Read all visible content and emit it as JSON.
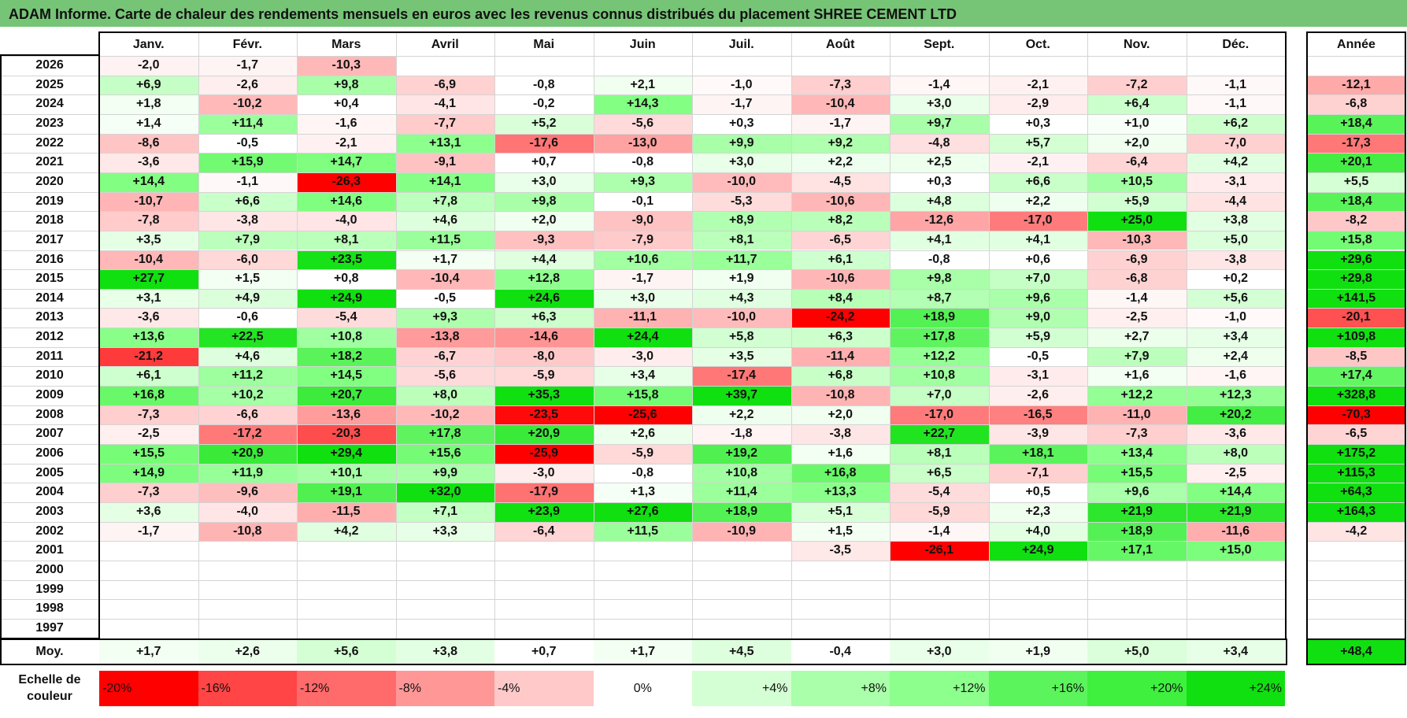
{
  "title": "ADAM Informe. Carte de chaleur des rendements mensuels en euros avec les revenus connus distribués du placement SHREE CEMENT LTD",
  "chart_data": {
    "type": "heatmap",
    "months": [
      "Janv.",
      "Févr.",
      "Mars",
      "Avril",
      "Mai",
      "Juin",
      "Juil.",
      "Août",
      "Sept.",
      "Oct.",
      "Nov.",
      "Déc."
    ],
    "year_header": "Année",
    "rows": [
      {
        "year": "2026",
        "months": [
          "-2,0",
          "-1,7",
          "-10,3",
          "",
          "",
          "",
          "",
          "",
          "",
          "",
          "",
          ""
        ],
        "annual": ""
      },
      {
        "year": "2025",
        "months": [
          "+6,9",
          "-2,6",
          "+9,8",
          "-6,9",
          "-0,8",
          "+2,1",
          "-1,0",
          "-7,3",
          "-1,4",
          "-2,1",
          "-7,2",
          "-1,1"
        ],
        "annual": "-12,1"
      },
      {
        "year": "2024",
        "months": [
          "+1,8",
          "-10,2",
          "+0,4",
          "-4,1",
          "-0,2",
          "+14,3",
          "-1,7",
          "-10,4",
          "+3,0",
          "-2,9",
          "+6,4",
          "-1,1"
        ],
        "annual": "-6,8"
      },
      {
        "year": "2023",
        "months": [
          "+1,4",
          "+11,4",
          "-1,6",
          "-7,7",
          "+5,2",
          "-5,6",
          "+0,3",
          "-1,7",
          "+9,7",
          "+0,3",
          "+1,0",
          "+6,2"
        ],
        "annual": "+18,4"
      },
      {
        "year": "2022",
        "months": [
          "-8,6",
          "-0,5",
          "-2,1",
          "+13,1",
          "-17,6",
          "-13,0",
          "+9,9",
          "+9,2",
          "-4,8",
          "+5,7",
          "+2,0",
          "-7,0"
        ],
        "annual": "-17,3"
      },
      {
        "year": "2021",
        "months": [
          "-3,6",
          "+15,9",
          "+14,7",
          "-9,1",
          "+0,7",
          "-0,8",
          "+3,0",
          "+2,2",
          "+2,5",
          "-2,1",
          "-6,4",
          "+4,2"
        ],
        "annual": "+20,1"
      },
      {
        "year": "2020",
        "months": [
          "+14,4",
          "-1,1",
          "-26,3",
          "+14,1",
          "+3,0",
          "+9,3",
          "-10,0",
          "-4,5",
          "+0,3",
          "+6,6",
          "+10,5",
          "-3,1"
        ],
        "annual": "+5,5"
      },
      {
        "year": "2019",
        "months": [
          "-10,7",
          "+6,6",
          "+14,6",
          "+7,8",
          "+9,8",
          "-0,1",
          "-5,3",
          "-10,6",
          "+4,8",
          "+2,2",
          "+5,9",
          "-4,4"
        ],
        "annual": "+18,4"
      },
      {
        "year": "2018",
        "months": [
          "-7,8",
          "-3,8",
          "-4,0",
          "+4,6",
          "+2,0",
          "-9,0",
          "+8,9",
          "+8,2",
          "-12,6",
          "-17,0",
          "+25,0",
          "+3,8"
        ],
        "annual": "-8,2"
      },
      {
        "year": "2017",
        "months": [
          "+3,5",
          "+7,9",
          "+8,1",
          "+11,5",
          "-9,3",
          "-7,9",
          "+8,1",
          "-6,5",
          "+4,1",
          "+4,1",
          "-10,3",
          "+5,0"
        ],
        "annual": "+15,8"
      },
      {
        "year": "2016",
        "months": [
          "-10,4",
          "-6,0",
          "+23,5",
          "+1,7",
          "+4,4",
          "+10,6",
          "+11,7",
          "+6,1",
          "-0,8",
          "+0,6",
          "-6,9",
          "-3,8"
        ],
        "annual": "+29,6"
      },
      {
        "year": "2015",
        "months": [
          "+27,7",
          "+1,5",
          "+0,8",
          "-10,4",
          "+12,8",
          "-1,7",
          "+1,9",
          "-10,6",
          "+9,8",
          "+7,0",
          "-6,8",
          "+0,2"
        ],
        "annual": "+29,8"
      },
      {
        "year": "2014",
        "months": [
          "+3,1",
          "+4,9",
          "+24,9",
          "-0,5",
          "+24,6",
          "+3,0",
          "+4,3",
          "+8,4",
          "+8,7",
          "+9,6",
          "-1,4",
          "+5,6"
        ],
        "annual": "+141,5"
      },
      {
        "year": "2013",
        "months": [
          "-3,6",
          "-0,6",
          "-5,4",
          "+9,3",
          "+6,3",
          "-11,1",
          "-10,0",
          "-24,2",
          "+18,9",
          "+9,0",
          "-2,5",
          "-1,0"
        ],
        "annual": "-20,1"
      },
      {
        "year": "2012",
        "months": [
          "+13,6",
          "+22,5",
          "+10,8",
          "-13,8",
          "-14,6",
          "+24,4",
          "+5,8",
          "+6,3",
          "+17,8",
          "+5,9",
          "+2,7",
          "+3,4"
        ],
        "annual": "+109,8"
      },
      {
        "year": "2011",
        "months": [
          "-21,2",
          "+4,6",
          "+18,2",
          "-6,7",
          "-8,0",
          "-3,0",
          "+3,5",
          "-11,4",
          "+12,2",
          "-0,5",
          "+7,9",
          "+2,4"
        ],
        "annual": "-8,5"
      },
      {
        "year": "2010",
        "months": [
          "+6,1",
          "+11,2",
          "+14,5",
          "-5,6",
          "-5,9",
          "+3,4",
          "-17,4",
          "+6,8",
          "+10,8",
          "-3,1",
          "+1,6",
          "-1,6"
        ],
        "annual": "+17,4"
      },
      {
        "year": "2009",
        "months": [
          "+16,8",
          "+10,2",
          "+20,7",
          "+8,0",
          "+35,3",
          "+15,8",
          "+39,7",
          "-10,8",
          "+7,0",
          "-2,6",
          "+12,2",
          "+12,3"
        ],
        "annual": "+328,8"
      },
      {
        "year": "2008",
        "months": [
          "-7,3",
          "-6,6",
          "-13,6",
          "-10,2",
          "-23,5",
          "-25,6",
          "+2,2",
          "+2,0",
          "-17,0",
          "-16,5",
          "-11,0",
          "+20,2"
        ],
        "annual": "-70,3"
      },
      {
        "year": "2007",
        "months": [
          "-2,5",
          "-17,2",
          "-20,3",
          "+17,8",
          "+20,9",
          "+2,6",
          "-1,8",
          "-3,8",
          "+22,7",
          "-3,9",
          "-7,3",
          "-3,6"
        ],
        "annual": "-6,5"
      },
      {
        "year": "2006",
        "months": [
          "+15,5",
          "+20,9",
          "+29,4",
          "+15,6",
          "-25,9",
          "-5,9",
          "+19,2",
          "+1,6",
          "+8,1",
          "+18,1",
          "+13,4",
          "+8,0"
        ],
        "annual": "+175,2"
      },
      {
        "year": "2005",
        "months": [
          "+14,9",
          "+11,9",
          "+10,1",
          "+9,9",
          "-3,0",
          "-0,8",
          "+10,8",
          "+16,8",
          "+6,5",
          "-7,1",
          "+15,5",
          "-2,5"
        ],
        "annual": "+115,3"
      },
      {
        "year": "2004",
        "months": [
          "-7,3",
          "-9,6",
          "+19,1",
          "+32,0",
          "-17,9",
          "+1,3",
          "+11,4",
          "+13,3",
          "-5,4",
          "+0,5",
          "+9,6",
          "+14,4"
        ],
        "annual": "+64,3"
      },
      {
        "year": "2003",
        "months": [
          "+3,6",
          "-4,0",
          "-11,5",
          "+7,1",
          "+23,9",
          "+27,6",
          "+18,9",
          "+5,1",
          "-5,9",
          "+2,3",
          "+21,9",
          "+21,9"
        ],
        "annual": "+164,3"
      },
      {
        "year": "2002",
        "months": [
          "-1,7",
          "-10,8",
          "+4,2",
          "+3,3",
          "-6,4",
          "+11,5",
          "-10,9",
          "+1,5",
          "-1,4",
          "+4,0",
          "+18,9",
          "-11,6"
        ],
        "annual": "-4,2"
      },
      {
        "year": "2001",
        "months": [
          "",
          "",
          "",
          "",
          "",
          "",
          "",
          "-3,5",
          "-26,1",
          "+24,9",
          "+17,1",
          "+15,0"
        ],
        "annual": ""
      },
      {
        "year": "2000",
        "months": [
          "",
          "",
          "",
          "",
          "",
          "",
          "",
          "",
          "",
          "",
          "",
          ""
        ],
        "annual": ""
      },
      {
        "year": "1999",
        "months": [
          "",
          "",
          "",
          "",
          "",
          "",
          "",
          "",
          "",
          "",
          "",
          ""
        ],
        "annual": ""
      },
      {
        "year": "1998",
        "months": [
          "",
          "",
          "",
          "",
          "",
          "",
          "",
          "",
          "",
          "",
          "",
          ""
        ],
        "annual": ""
      },
      {
        "year": "1997",
        "months": [
          "",
          "",
          "",
          "",
          "",
          "",
          "",
          "",
          "",
          "",
          "",
          ""
        ],
        "annual": ""
      }
    ],
    "average": {
      "label": "Moy.",
      "months": [
        "+1,7",
        "+2,6",
        "+5,6",
        "+3,8",
        "+0,7",
        "+1,7",
        "+4,5",
        "-0,4",
        "+3,0",
        "+1,9",
        "+5,0",
        "+3,4"
      ],
      "annual": "+48,4"
    },
    "scale": {
      "label_line1": "Echelle de",
      "label_line2": "couleur",
      "items": [
        {
          "text": "-20%",
          "color": "#ff0000",
          "align": "left"
        },
        {
          "text": "-16%",
          "color": "#ff4545",
          "align": "left"
        },
        {
          "text": "-12%",
          "color": "#ff6a6a",
          "align": "left"
        },
        {
          "text": "-8%",
          "color": "#ff9797",
          "align": "left"
        },
        {
          "text": "-4%",
          "color": "#ffc9c9",
          "align": "left"
        },
        {
          "text": "0%",
          "color": "#ffffff",
          "align": "center"
        },
        {
          "text": "+4%",
          "color": "#d4ffd4",
          "align": "right"
        },
        {
          "text": "+8%",
          "color": "#aaffaa",
          "align": "right"
        },
        {
          "text": "+12%",
          "color": "#8cff8c",
          "align": "right"
        },
        {
          "text": "+16%",
          "color": "#5cf45c",
          "align": "right"
        },
        {
          "text": "+20%",
          "color": "#3ff03f",
          "align": "right"
        },
        {
          "text": "+24%",
          "color": "#10e010",
          "align": "right"
        }
      ]
    }
  }
}
